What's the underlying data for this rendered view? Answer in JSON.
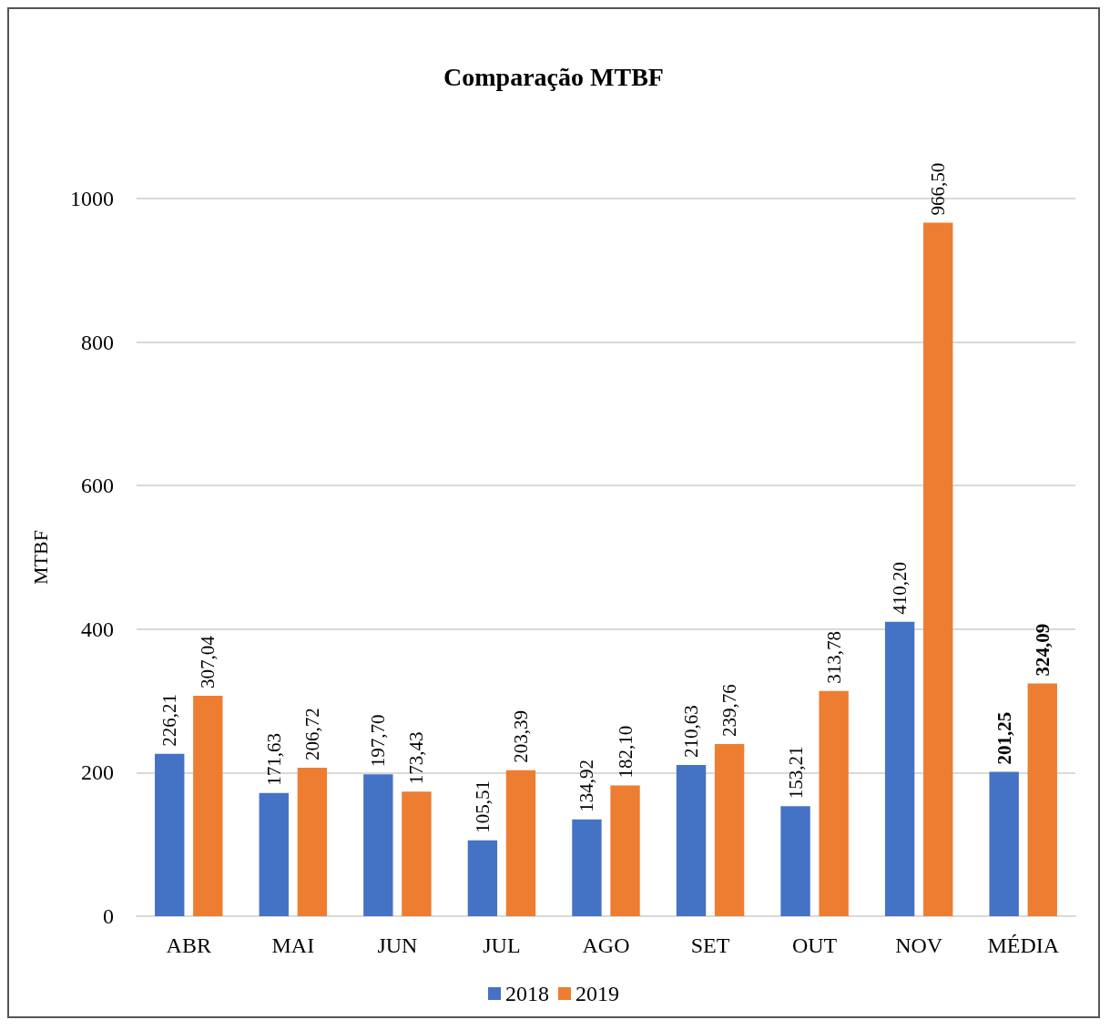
{
  "chart_data": {
    "type": "bar",
    "title": "Comparação MTBF",
    "ylabel": "MTBF",
    "categories": [
      "ABR",
      "MAI",
      "JUN",
      "JUL",
      "AGO",
      "SET",
      "OUT",
      "NOV",
      "MÉDIA"
    ],
    "series": [
      {
        "name": "2018",
        "color": "#4472c4",
        "values": [
          226.21,
          171.63,
          197.7,
          105.51,
          134.92,
          210.63,
          153.21,
          410.2,
          201.25
        ],
        "value_labels": [
          "226,21",
          "171,63",
          "197,70",
          "105,51",
          "134,92",
          "210,63",
          "153,21",
          "410,20",
          "201,25"
        ]
      },
      {
        "name": "2019",
        "color": "#ed7d31",
        "values": [
          307.04,
          206.72,
          173.43,
          203.39,
          182.1,
          239.76,
          313.78,
          966.5,
          324.09
        ],
        "value_labels": [
          "307,04",
          "206,72",
          "173,43",
          "203,39",
          "182,10",
          "239,76",
          "313,78",
          "966,50",
          "324,09"
        ]
      }
    ],
    "ylim": [
      0,
      1000
    ],
    "yticks": [
      0,
      200,
      400,
      600,
      800,
      1000
    ],
    "grid": "y",
    "legend": "bottom"
  }
}
